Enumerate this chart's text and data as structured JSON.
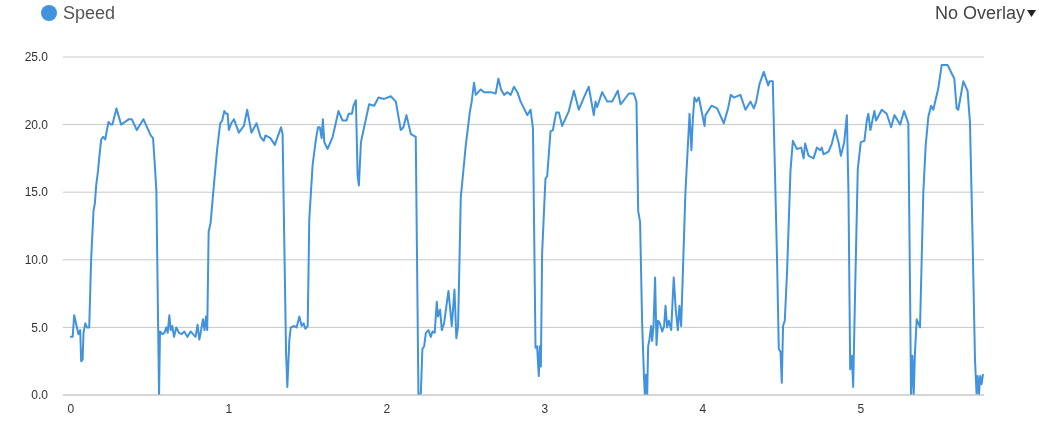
{
  "chart_data": {
    "type": "line",
    "x": [
      0,
      0.011,
      0.021,
      0.036,
      0.048,
      0.059,
      0.065,
      0.074,
      0.08,
      0.091,
      0.101,
      0.116,
      0.128,
      0.143,
      0.152,
      0.16,
      0.171,
      0.179,
      0.192,
      0.204,
      0.217,
      0.238,
      0.253,
      0.263,
      0.288,
      0.318,
      0.368,
      0.385,
      0.417,
      0.459,
      0.505,
      0.52,
      0.533,
      0.541,
      0.558,
      0.564,
      0.579,
      0.592,
      0.604,
      0.613,
      0.623,
      0.632,
      0.642,
      0.653,
      0.667,
      0.684,
      0.701,
      0.718,
      0.737,
      0.758,
      0.773,
      0.789,
      0.802,
      0.813,
      0.823,
      0.836,
      0.846,
      0.855,
      0.863,
      0.872,
      0.884,
      0.905,
      0.926,
      0.945,
      0.958,
      0.971,
      0.983,
      0.992,
      1,
      1.015,
      1.032,
      1.063,
      1.095,
      1.116,
      1.143,
      1.175,
      1.2,
      1.221,
      1.232,
      1.263,
      1.291,
      1.33,
      1.34,
      1.362,
      1.37,
      1.383,
      1.392,
      1.414,
      1.429,
      1.446,
      1.461,
      1.473,
      1.484,
      1.499,
      1.509,
      1.53,
      1.551,
      1.564,
      1.576,
      1.587,
      1.595,
      1.604,
      1.625,
      1.657,
      1.694,
      1.72,
      1.745,
      1.758,
      1.779,
      1.789,
      1.804,
      1.815,
      1.823,
      1.836,
      1.867,
      1.888,
      1.92,
      1.947,
      1.983,
      2.025,
      2.057,
      2.088,
      2.105,
      2.124,
      2.152,
      2.183,
      2.2,
      2.215,
      2.225,
      2.236,
      2.247,
      2.263,
      2.278,
      2.289,
      2.303,
      2.316,
      2.324,
      2.337,
      2.348,
      2.362,
      2.39,
      2.411,
      2.428,
      2.44,
      2.451,
      2.468,
      2.499,
      2.525,
      2.537,
      2.552,
      2.563,
      2.594,
      2.615,
      2.657,
      2.689,
      2.706,
      2.723,
      2.742,
      2.763,
      2.784,
      2.805,
      2.826,
      2.847,
      2.868,
      2.889,
      2.91,
      2.925,
      2.941,
      2.951,
      2.962,
      2.968,
      2.975,
      2.983,
      3.004,
      3.015,
      3.036,
      3.051,
      3.072,
      3.089,
      3.11,
      3.152,
      3.184,
      3.215,
      3.247,
      3.278,
      3.31,
      3.321,
      3.331,
      3.363,
      3.395,
      3.426,
      3.462,
      3.479,
      3.5,
      3.532,
      3.563,
      3.58,
      3.591,
      3.603,
      3.616,
      3.627,
      3.633,
      3.641,
      3.648,
      3.654,
      3.662,
      3.673,
      3.679,
      3.688,
      3.698,
      3.707,
      3.717,
      3.728,
      3.743,
      3.755,
      3.764,
      3.774,
      3.785,
      3.8,
      3.816,
      3.829,
      3.842,
      3.852,
      3.863,
      3.89,
      3.916,
      3.928,
      3.937,
      3.947,
      3.96,
      3.975,
      4.011,
      4.017,
      4.055,
      4.091,
      4.133,
      4.16,
      4.177,
      4.196,
      4.238,
      4.27,
      4.302,
      4.323,
      4.338,
      4.359,
      4.386,
      4.414,
      4.422,
      4.443,
      4.47,
      4.481,
      4.492,
      4.5,
      4.508,
      4.519,
      4.534,
      4.555,
      4.57,
      4.595,
      4.623,
      4.638,
      4.648,
      4.669,
      4.701,
      4.722,
      4.743,
      4.753,
      4.764,
      4.796,
      4.817,
      4.838,
      4.859,
      4.874,
      4.895,
      4.912,
      4.922,
      4.933,
      4.943,
      4.952,
      4.964,
      4.981,
      5,
      5.023,
      5.038,
      5.048,
      5.061,
      5.086,
      5.097,
      5.133,
      5.164,
      5.192,
      5.213,
      5.249,
      5.274,
      5.301,
      5.312,
      5.318,
      5.327,
      5.335,
      5.343,
      5.354,
      5.365,
      5.375,
      5.396,
      5.411,
      5.428,
      5.445,
      5.459,
      5.491,
      5.512,
      5.55,
      5.575,
      5.592,
      5.607,
      5.617,
      5.649,
      5.676,
      5.691,
      5.706,
      5.723,
      5.733,
      5.74,
      5.748,
      5.756,
      5.765,
      5.773
    ],
    "series": [
      {
        "name": "Speed",
        "color": "#4193dd",
        "values": [
          4.3,
          4.3,
          5.9,
          5.1,
          4.5,
          4.8,
          2.5,
          2.6,
          4.6,
          5.3,
          5.0,
          5.0,
          10.0,
          13.6,
          14.2,
          15.5,
          16.5,
          17.5,
          18.9,
          19.1,
          18.9,
          20.2,
          20.0,
          20.0,
          21.2,
          20.0,
          20.4,
          20.4,
          19.6,
          20.4,
          19.2,
          19.0,
          16.7,
          15.1,
          0,
          4.7,
          4.5,
          4.6,
          5.0,
          4.6,
          5.9,
          4.8,
          5.1,
          4.3,
          5.0,
          4.6,
          4.5,
          4.7,
          4.3,
          4.7,
          4.5,
          4.3,
          5.2,
          4.1,
          4.7,
          5.6,
          4.8,
          5.8,
          4.8,
          12.1,
          12.7,
          15.5,
          18.2,
          20.1,
          20.3,
          21.0,
          20.8,
          20.8,
          19.6,
          20.1,
          20.4,
          19.4,
          19.9,
          21.1,
          19.4,
          20.1,
          19.1,
          18.8,
          19.2,
          19.0,
          18.5,
          19.8,
          19.3,
          3.1,
          0.6,
          4.1,
          5.0,
          5.1,
          5.0,
          5.8,
          5.1,
          5.3,
          4.9,
          5.1,
          13.0,
          17.0,
          18.9,
          19.8,
          19.8,
          19.0,
          20.4,
          18.7,
          18.2,
          19.1,
          21.0,
          20.3,
          20.3,
          20.8,
          20.8,
          21.4,
          21.8,
          16.2,
          15.5,
          18.7,
          20.4,
          21.5,
          21.4,
          22.0,
          21.9,
          22.1,
          21.7,
          19.6,
          19.8,
          20.7,
          19.3,
          19.1,
          0,
          0.1,
          3.4,
          3.6,
          4.6,
          4.8,
          4.3,
          4.7,
          4.6,
          6.9,
          5.8,
          6.3,
          4.8,
          5.3,
          7.7,
          5.1,
          7.8,
          4.2,
          5.1,
          14.6,
          18.4,
          20.9,
          21.7,
          23.1,
          22.2,
          22.6,
          22.4,
          22.4,
          22.3,
          23.4,
          22.6,
          22.2,
          22.4,
          22.2,
          22.8,
          22.4,
          21.7,
          21.2,
          20.7,
          21.1,
          19.7,
          3.5,
          3.6,
          1.4,
          3.6,
          2.1,
          10.5,
          16.0,
          16.2,
          19.5,
          19.6,
          20.9,
          20.9,
          19.9,
          21.0,
          22.5,
          21.1,
          22.0,
          22.8,
          20.7,
          21.7,
          21.3,
          22.4,
          21.7,
          21.7,
          22.5,
          21.5,
          21.8,
          22.3,
          22.3,
          21.7,
          13.6,
          12.8,
          5.3,
          1.6,
          0,
          1.5,
          0,
          3.6,
          4.1,
          5.1,
          4.0,
          5.1,
          8.7,
          3.7,
          5.5,
          5.3,
          4.7,
          5.1,
          6.6,
          5.0,
          5.5,
          4.8,
          8.7,
          6.3,
          4.8,
          6.6,
          5.1,
          15.0,
          20.8,
          18.1,
          20.4,
          22.0,
          21.7,
          22.0,
          19.9,
          20.7,
          21.4,
          21.2,
          20.1,
          21.2,
          22.2,
          22.0,
          22.2,
          21.1,
          21.7,
          21.2,
          21.7,
          23.0,
          23.9,
          22.9,
          23.2,
          23.2,
          10.0,
          3.4,
          3.2,
          0.9,
          5.1,
          5.5,
          9.3,
          16.6,
          18.8,
          18.2,
          18.3,
          17.5,
          18.6,
          17.7,
          17.5,
          18.3,
          18.1,
          18.3,
          17.8,
          18.0,
          18.6,
          19.6,
          18.7,
          17.7,
          18.7,
          20.7,
          15.0,
          1.9,
          2.9,
          0.6,
          7.6,
          16.7,
          18.7,
          18.8,
          20.3,
          20.8,
          19.6,
          21.0,
          20.3,
          21.1,
          20.8,
          19.8,
          20.7,
          20.0,
          21.0,
          20.1,
          7.6,
          0,
          2.9,
          0,
          3.1,
          5.6,
          5.3,
          5.0,
          15.0,
          18.5,
          20.6,
          21.4,
          21.1,
          22.7,
          24.4,
          24.4,
          23.8,
          23.4,
          21.2,
          21.1,
          23.2,
          22.5,
          20.2,
          12.5,
          2.6,
          0.1,
          1.4,
          0,
          1.4,
          0.8,
          1.5
        ]
      }
    ],
    "xlim": [
      -0.05,
      5.78
    ],
    "xticks": [
      0,
      1,
      2,
      3,
      4,
      5
    ],
    "ylim": [
      0,
      25
    ],
    "yticks": [
      {
        "value": 0,
        "label": "0.0"
      },
      {
        "value": 5,
        "label": "5.0"
      },
      {
        "value": 10,
        "label": "10.0"
      },
      {
        "value": 15,
        "label": "15.0"
      },
      {
        "value": 20,
        "label": "20.0"
      },
      {
        "value": 25,
        "label": "25.0"
      }
    ],
    "grid": "y",
    "legend": "top left",
    "marker": "none",
    "line_style": "solid",
    "annotations": [
      "No Overlay"
    ]
  }
}
